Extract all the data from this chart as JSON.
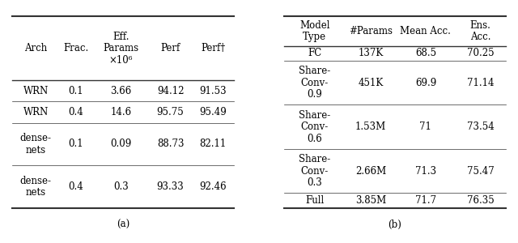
{
  "table_a": {
    "caption": "(a)",
    "headers": [
      "Arch",
      "Frac.",
      "Eff.\nParams\n×10⁶",
      "Perf",
      "Perf†"
    ],
    "rows": [
      [
        "WRN",
        "0.1",
        "3.66",
        "94.12",
        "91.53"
      ],
      [
        "WRN",
        "0.4",
        "14.6",
        "95.75",
        "95.49"
      ],
      [
        "dense-\nnets",
        "0.1",
        "0.09",
        "88.73",
        "82.11"
      ],
      [
        "dense-\nnets",
        "0.4",
        "0.3",
        "93.33",
        "92.46"
      ]
    ]
  },
  "table_b": {
    "caption": "(b)",
    "headers": [
      "Model\nType",
      "#Params",
      "Mean Acc.",
      "Ens.\nAcc."
    ],
    "rows": [
      [
        "FC",
        "137K",
        "68.5",
        "70.25"
      ],
      [
        "Share-\nConv-\n0.9",
        "451K",
        "69.9",
        "71.14"
      ],
      [
        "Share-\nConv-\n0.6",
        "1.53M",
        "71",
        "73.54"
      ],
      [
        "Share-\nConv-\n0.3",
        "2.66M",
        "71.3",
        "75.47"
      ],
      [
        "Full",
        "3.85M",
        "71.7",
        "76.35"
      ]
    ]
  },
  "bg_color": "#ffffff",
  "text_color": "#000000",
  "font_size": 8.5,
  "line_color": "#333333"
}
